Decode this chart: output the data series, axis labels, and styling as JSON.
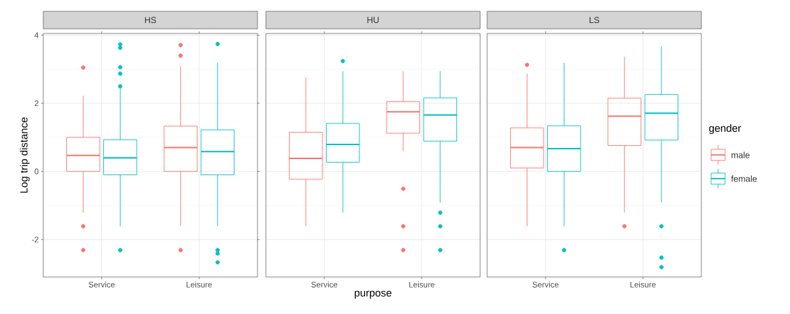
{
  "chart_data": [
    {
      "type": "box",
      "title": "HS",
      "ylabel": "Log trip distance",
      "categories": [
        "Service",
        "Leisure"
      ],
      "ylim": [
        -3.1,
        4.05
      ],
      "yticks": [
        -2,
        0,
        2,
        4
      ],
      "grid": true,
      "series": [
        {
          "color": "#f8766d",
          "boxes": [
            {
              "low": -1.21,
              "q1": 0,
              "median": 0.47,
              "q3": 1.0,
              "high": 2.22,
              "outliers": [
                3.05,
                -1.61,
                -2.31
              ]
            },
            {
              "low": -1.61,
              "q1": 0,
              "median": 0.7,
              "q3": 1.33,
              "high": 3.09,
              "outliers": [
                3.71,
                3.4,
                -2.31
              ]
            }
          ]
        },
        {
          "color": "#00bfc4",
          "boxes": [
            {
              "low": -1.61,
              "q1": -0.1,
              "median": 0.4,
              "q3": 0.93,
              "high": 2.44,
              "outliers": [
                2.5,
                2.87,
                3.06,
                3.63,
                3.73,
                -2.31
              ]
            },
            {
              "low": -1.61,
              "q1": -0.1,
              "median": 0.58,
              "q3": 1.22,
              "high": 3.19,
              "outliers": [
                3.74,
                -2.31,
                -2.41,
                -2.67
              ]
            }
          ]
        }
      ]
    },
    {
      "type": "box",
      "title": "HU",
      "xlabel": "purpose",
      "categories": [
        "Service",
        "Leisure"
      ],
      "ylim": [
        -3.1,
        4.05
      ],
      "yticks": [
        -2,
        0,
        2,
        4
      ],
      "grid": true,
      "tick_labels": "x",
      "series": [
        {
          "color": "#f8766d",
          "boxes": [
            {
              "low": -1.61,
              "q1": -0.23,
              "median": 0.38,
              "q3": 1.15,
              "high": 2.76
            },
            {
              "low": 0.59,
              "q1": 1.12,
              "median": 1.75,
              "q3": 2.05,
              "high": 2.94,
              "outliers": [
                -0.51,
                -1.61,
                -2.31
              ]
            }
          ]
        },
        {
          "color": "#00bfc4",
          "boxes": [
            {
              "low": -1.21,
              "q1": 0.27,
              "median": 0.79,
              "q3": 1.41,
              "high": 2.94,
              "outliers": [
                3.24
              ]
            },
            {
              "low": -0.91,
              "q1": 0.89,
              "median": 1.66,
              "q3": 2.16,
              "high": 2.94,
              "outliers": [
                -1.21,
                -1.61,
                -2.31
              ]
            }
          ]
        }
      ]
    },
    {
      "type": "box",
      "title": "LS",
      "categories": [
        "Service",
        "Leisure"
      ],
      "ylim": [
        -3.1,
        4.05
      ],
      "yticks": [
        -2,
        0,
        2,
        4
      ],
      "grid": true,
      "tick_labels": "x",
      "legend": "right",
      "legend_title": "gender",
      "series": [
        {
          "name": "male",
          "color": "#f8766d",
          "boxes": [
            {
              "low": -1.61,
              "q1": 0.1,
              "median": 0.7,
              "q3": 1.28,
              "high": 2.87,
              "outliers": [
                3.13
              ]
            },
            {
              "low": -1.21,
              "q1": 0.76,
              "median": 1.62,
              "q3": 2.15,
              "high": 3.37,
              "outliers": [
                -1.61
              ]
            }
          ]
        },
        {
          "name": "female",
          "color": "#00bfc4",
          "boxes": [
            {
              "low": -1.61,
              "q1": 0,
              "median": 0.67,
              "q3": 1.34,
              "high": 3.19,
              "outliers": [
                -2.31
              ]
            },
            {
              "low": -0.91,
              "q1": 0.92,
              "median": 1.71,
              "q3": 2.26,
              "high": 3.67,
              "outliers": [
                -1.61,
                -2.53,
                -2.81
              ]
            }
          ]
        }
      ]
    }
  ]
}
